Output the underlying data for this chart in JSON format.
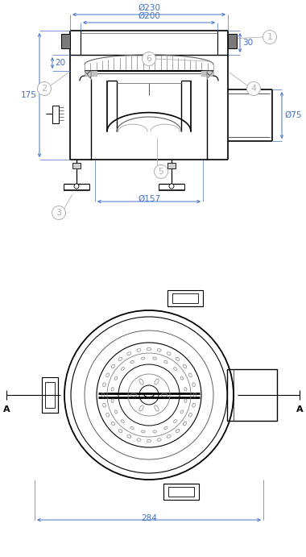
{
  "bg_color": "#ffffff",
  "lc": "#000000",
  "dc": "#4472c4",
  "gray": "#808080",
  "lgray": "#b0b0b0",
  "hgray": "#606060",
  "fig_width": 3.8,
  "fig_height": 6.91,
  "dpi": 100,
  "labels": {
    "dim230": "Ø230",
    "dim200": "Ø200",
    "dim157": "Ø157",
    "dim284": "284",
    "dim175": "175",
    "dim20": "20",
    "dim30": "30",
    "dim75": "Ø75",
    "A": "A",
    "n1": "1",
    "n2": "2",
    "n3": "3",
    "n4": "4",
    "n5": "5",
    "n6": "6"
  }
}
